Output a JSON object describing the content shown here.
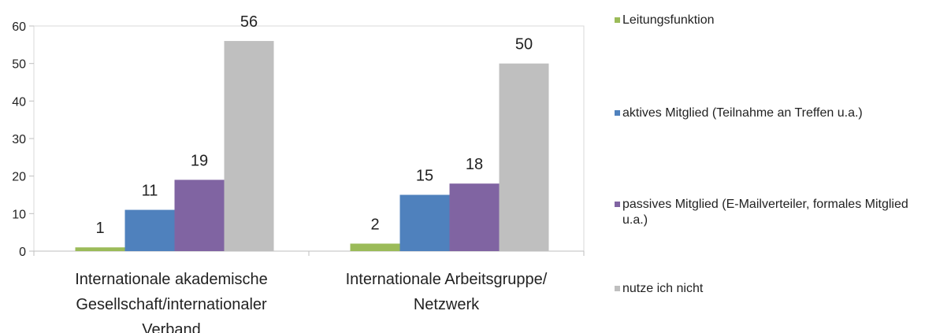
{
  "chart_data": {
    "type": "bar",
    "categories": [
      [
        "Internationale akademische",
        "Gesellschaft/internationaler",
        "Verband"
      ],
      [
        "Internationale Arbeitsgruppe/",
        "Netzwerk"
      ]
    ],
    "series": [
      {
        "name": "Leitungsfunktion",
        "color": "#9bbb59",
        "values": [
          1,
          2
        ]
      },
      {
        "name": "aktives Mitglied (Teilnahme an Treffen u.a.)",
        "color": "#4f81bd",
        "values": [
          11,
          15
        ]
      },
      {
        "name": "passives Mitglied (E-Mailverteiler, formales Mitglied u.a.)",
        "color": "#8064a2",
        "values": [
          19,
          18
        ]
      },
      {
        "name": "nutze ich nicht",
        "color": "#bfbfbf",
        "values": [
          56,
          50
        ]
      }
    ],
    "ylim": [
      0,
      60
    ],
    "yticks": [
      0,
      10,
      20,
      30,
      40,
      50,
      60
    ],
    "ytick_labels": [
      "0",
      "10",
      "20",
      "30",
      "40",
      "50",
      "60"
    ],
    "grid": false,
    "legend_position": "right",
    "data_labels": true
  }
}
